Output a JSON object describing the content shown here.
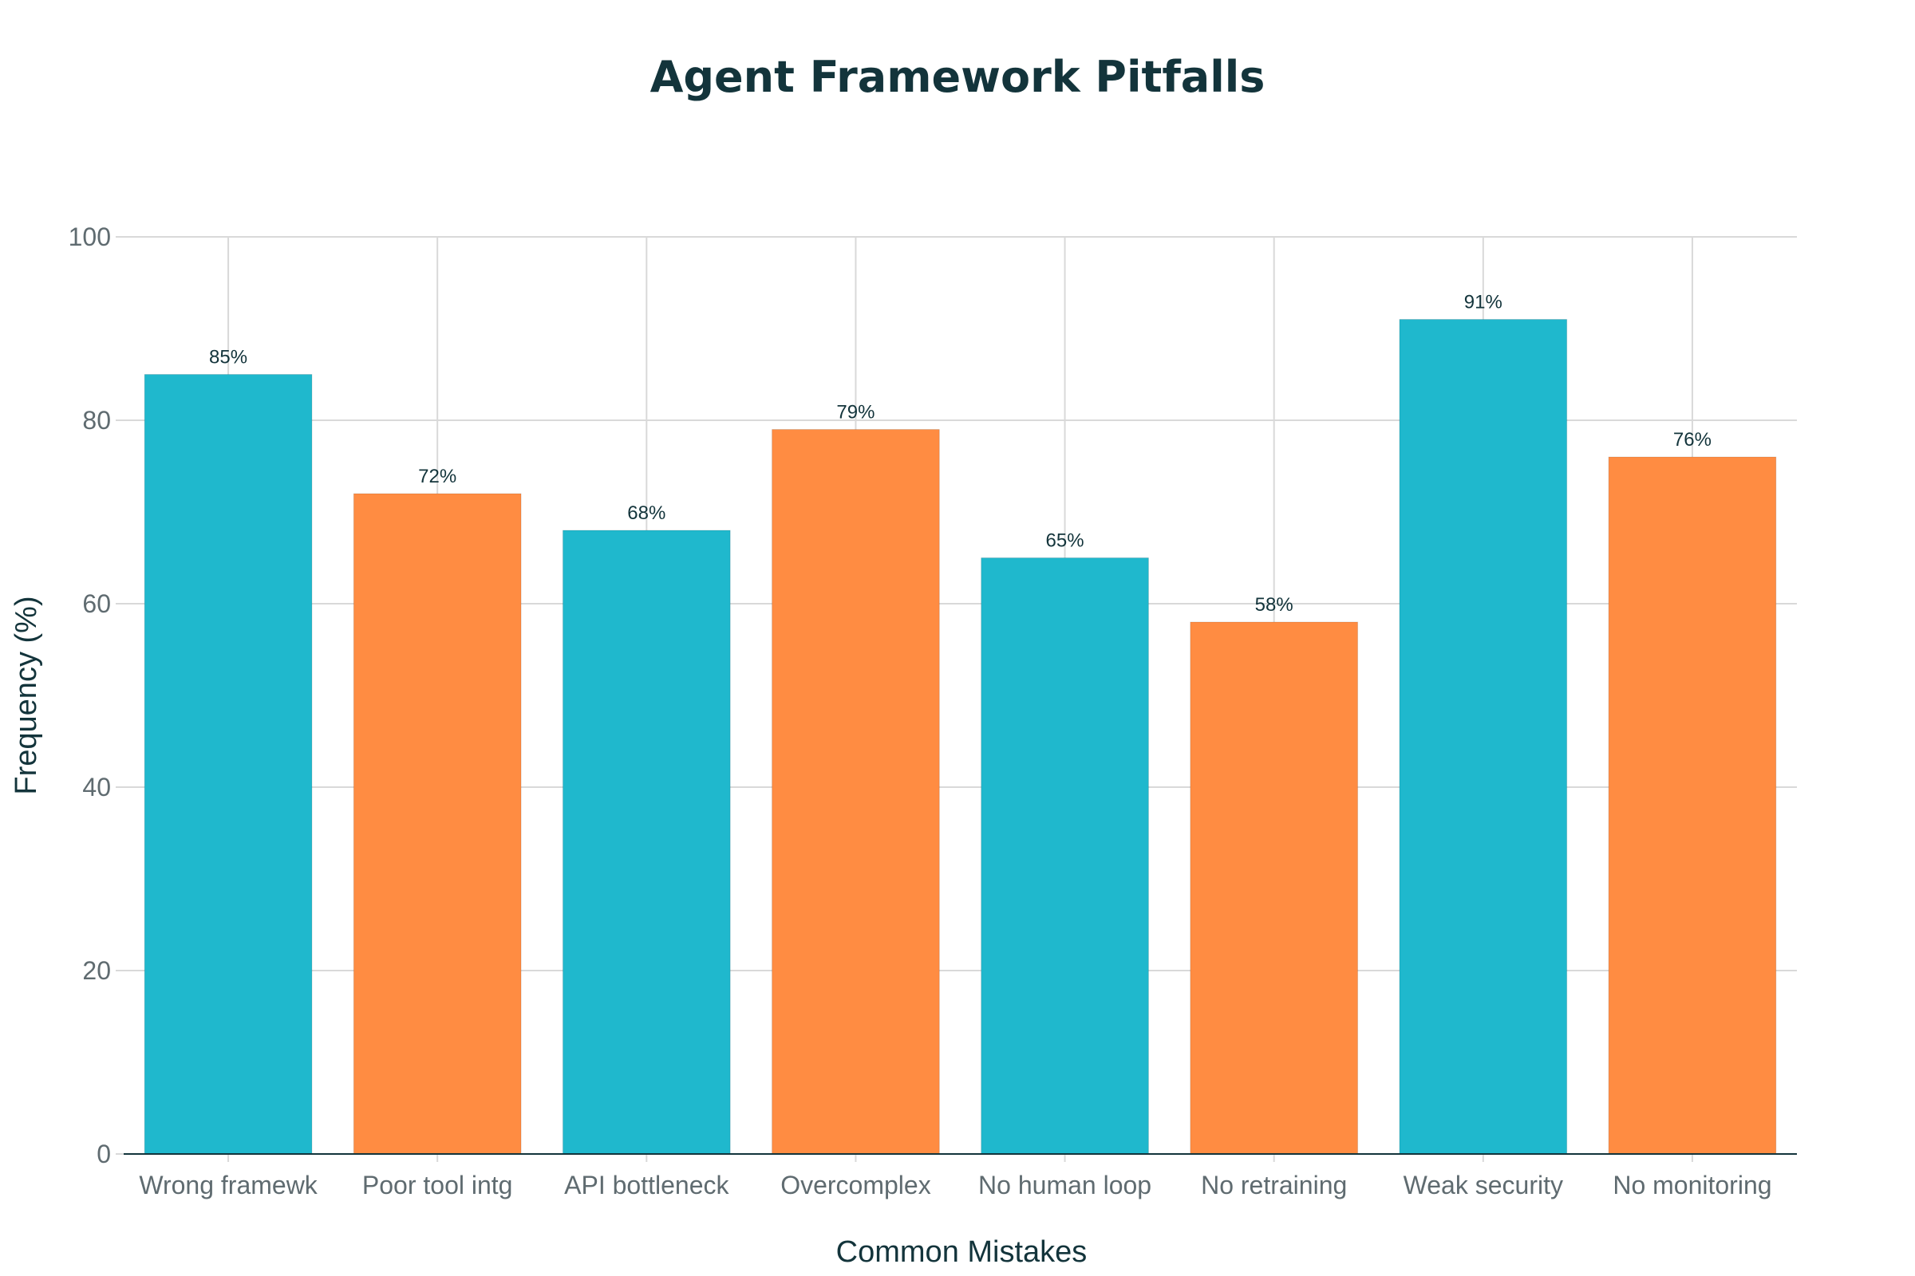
{
  "chart_data": {
    "type": "bar",
    "title": "Agent Framework Pitfalls",
    "xlabel": "Common Mistakes",
    "ylabel": "Frequency (%)",
    "ylim": [
      0,
      100
    ],
    "yticks": [
      0,
      20,
      40,
      60,
      80,
      100
    ],
    "grid": true,
    "categories": [
      "Wrong framewk",
      "Poor tool intg",
      "API bottleneck",
      "Overcomplex",
      "No human loop",
      "No retraining",
      "Weak security",
      "No monitoring"
    ],
    "values": [
      85,
      72,
      68,
      79,
      65,
      58,
      91,
      76
    ],
    "data_labels": [
      "85%",
      "72%",
      "68%",
      "79%",
      "65%",
      "58%",
      "91%",
      "76%"
    ],
    "colors": [
      "#1fb8cd",
      "#ff8c42",
      "#1fb8cd",
      "#ff8c42",
      "#1fb8cd",
      "#ff8c42",
      "#1fb8cd",
      "#ff8c42"
    ]
  }
}
